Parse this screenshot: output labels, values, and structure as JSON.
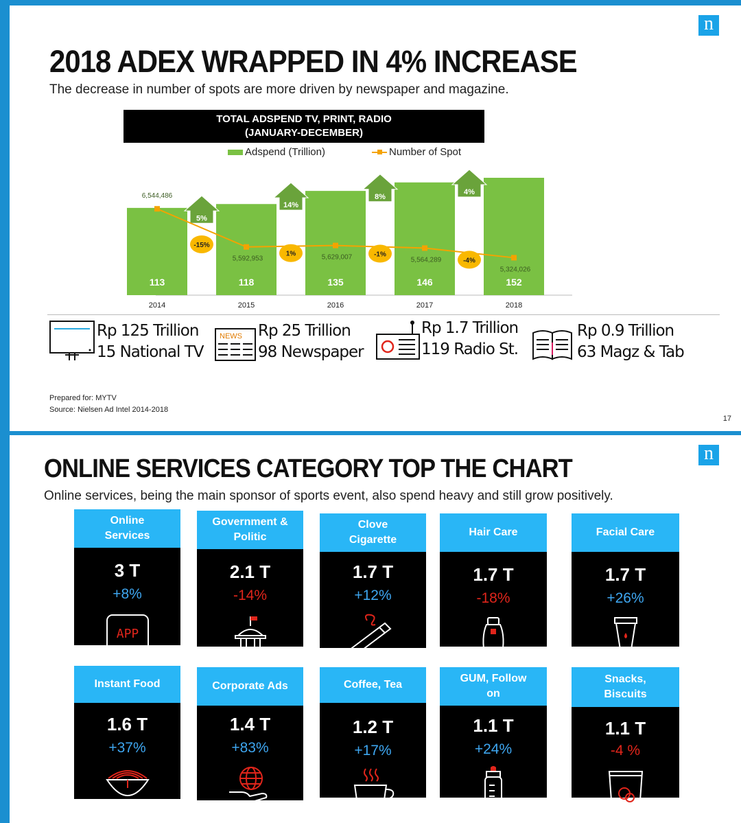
{
  "slide1": {
    "logo": "n",
    "title": "2018 ADEX WRAPPED IN 4% INCREASE",
    "subtitle": "The decrease in number of spots are more driven by newspaper and magazine.",
    "chart_header_line1": "TOTAL ADSPEND TV, PRINT, RADIO",
    "chart_header_line2": "(JANUARY-DECEMBER)",
    "legend_bar": "Adspend (Trillion)",
    "legend_line": "Number of Spot",
    "media": [
      {
        "line1": "Rp 125 Trillion",
        "line2": "15 National TV",
        "icon": "tv-icon"
      },
      {
        "line1": "Rp 25 Trillion",
        "line2": "98 Newspaper",
        "icon": "newspaper-icon",
        "icon_text": "NEWS"
      },
      {
        "line1": "Rp 1.7 Trillion",
        "line2": "119 Radio St.",
        "icon": "radio-icon"
      },
      {
        "line1": "Rp 0.9 Trillion",
        "line2": "63 Magz & Tab",
        "icon": "magazine-icon"
      }
    ],
    "prepared_for": "Prepared for: MYTV",
    "source": "Source: Nielsen Ad Intel 2014-2018",
    "page_number": "17"
  },
  "chart_data": {
    "type": "bar",
    "title": "TOTAL ADSPEND TV, PRINT, RADIO (JANUARY-DECEMBER)",
    "categories": [
      "2014",
      "2015",
      "2016",
      "2017",
      "2018"
    ],
    "series": [
      {
        "name": "Adspend (Trillion)",
        "type": "bar",
        "values": [
          113,
          118,
          135,
          146,
          152
        ],
        "color": "#7ac143"
      },
      {
        "name": "Number of Spot",
        "type": "line",
        "values": [
          6544486,
          5592953,
          5629007,
          5564289,
          5324026
        ],
        "labels": [
          "6,544,486",
          "5,592,953",
          "5,629,007",
          "5,564,289",
          "5,324,026"
        ],
        "color": "#f4a300"
      }
    ],
    "bar_growth": [
      "5%",
      "14%",
      "8%",
      "4%"
    ],
    "spot_growth": [
      "-15%",
      "1%",
      "-1%",
      "-4%"
    ],
    "ylim": [
      0,
      160
    ],
    "grid": false,
    "legend": "top"
  },
  "slide2": {
    "logo": "n",
    "title": "ONLINE SERVICES CATEGORY TOP THE CHART",
    "subtitle": "Online services, being the main sponsor of sports event, also spend heavy and still grow positively.",
    "categories": [
      {
        "name_l1": "Online",
        "name_l2": "Services",
        "value": "3 T",
        "change": "+8%",
        "trend": "up",
        "icon": "app-icon",
        "icon_text": "APP"
      },
      {
        "name_l1": "Government &",
        "name_l2": "Politic",
        "value": "2.1 T",
        "change": "-14%",
        "trend": "down",
        "icon": "government-building-icon"
      },
      {
        "name_l1": "Clove",
        "name_l2": "Cigarette",
        "value": "1.7 T",
        "change": "+12%",
        "trend": "up",
        "icon": "cigarette-icon"
      },
      {
        "name_l1": "Hair Care",
        "name_l2": "",
        "value": "1.7 T",
        "change": "-18%",
        "trend": "down",
        "icon": "shampoo-bottle-icon"
      },
      {
        "name_l1": "Facial Care",
        "name_l2": "",
        "value": "1.7 T",
        "change": "+26%",
        "trend": "up",
        "icon": "cream-tube-icon"
      },
      {
        "name_l1": "Instant Food",
        "name_l2": "",
        "value": "1.6 T",
        "change": "+37%",
        "trend": "up",
        "icon": "noodle-bowl-icon"
      },
      {
        "name_l1": "Corporate Ads",
        "name_l2": "",
        "value": "1.4 T",
        "change": "+83%",
        "trend": "up",
        "icon": "globe-hand-icon"
      },
      {
        "name_l1": "Coffee, Tea",
        "name_l2": "",
        "value": "1.2 T",
        "change": "+17%",
        "trend": "up",
        "icon": "coffee-cup-icon"
      },
      {
        "name_l1": "GUM, Follow",
        "name_l2": "on",
        "value": "1.1 T",
        "change": "+24%",
        "trend": "up",
        "icon": "baby-bottle-icon"
      },
      {
        "name_l1": "Snacks,",
        "name_l2": "Biscuits",
        "value": "1.1 T",
        "change": "-4 %",
        "trend": "down",
        "icon": "snack-bag-icon"
      }
    ]
  }
}
